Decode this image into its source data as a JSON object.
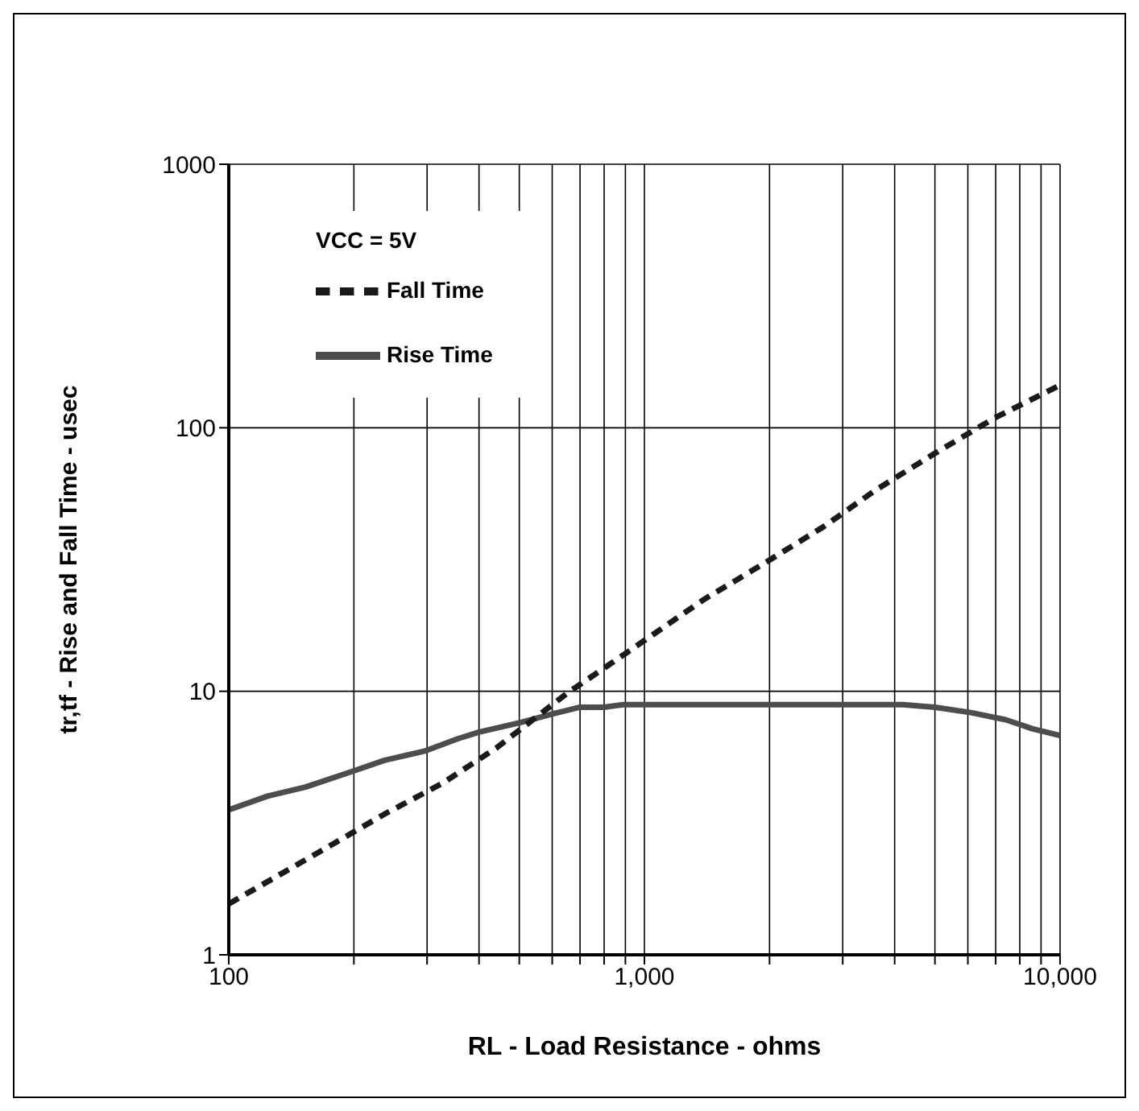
{
  "chart_data": {
    "type": "line",
    "xlabel": "RL - Load Resistance - ohms",
    "ylabel": "tr,tf - Rise and Fall Time - usec",
    "annotations": [
      "VCC = 5V"
    ],
    "log": "xy",
    "grid": true,
    "legend": "top left",
    "xlim": [
      100,
      10000
    ],
    "ylim": [
      1,
      1000
    ],
    "xticks": [
      {
        "value": 100,
        "label": "100"
      },
      {
        "value": 200,
        "label": null
      },
      {
        "value": 300,
        "label": null
      },
      {
        "value": 400,
        "label": null
      },
      {
        "value": 500,
        "label": null
      },
      {
        "value": 600,
        "label": null
      },
      {
        "value": 700,
        "label": null
      },
      {
        "value": 800,
        "label": null
      },
      {
        "value": 900,
        "label": null
      },
      {
        "value": 1000,
        "label": "1,000"
      },
      {
        "value": 2000,
        "label": null
      },
      {
        "value": 3000,
        "label": null
      },
      {
        "value": 4000,
        "label": null
      },
      {
        "value": 5000,
        "label": null
      },
      {
        "value": 6000,
        "label": null
      },
      {
        "value": 7000,
        "label": null
      },
      {
        "value": 8000,
        "label": null
      },
      {
        "value": 9000,
        "label": null
      },
      {
        "value": 10000,
        "label": "10,000"
      }
    ],
    "yticks": [
      1,
      10,
      100,
      1000
    ],
    "series": [
      {
        "name": "Rise Time",
        "color": "#4d4d4d",
        "line_style": "solid",
        "x": [
          100,
          124,
          153,
          200,
          237,
          296,
          355,
          400,
          502,
          600,
          700,
          800,
          890,
          4180,
          5000,
          6100,
          7400,
          8600,
          10000
        ],
        "values": [
          3.55,
          4.0,
          4.33,
          4.99,
          5.47,
          5.93,
          6.6,
          7.0,
          7.6,
          8.2,
          8.7,
          8.7,
          8.9,
          8.9,
          8.7,
          8.3,
          7.8,
          7.2,
          6.8
        ]
      },
      {
        "name": "Fall Time",
        "color": "#1a1a1a",
        "line_style": "dashed",
        "x": [
          100,
          120,
          166,
          237,
          327,
          440,
          650,
          900,
          1390,
          1930,
          2690,
          3600,
          5000,
          6960,
          10000
        ],
        "values": [
          1.56,
          1.84,
          2.47,
          3.42,
          4.48,
          6.09,
          9.8,
          13.9,
          22.3,
          30.4,
          42,
          58,
          80,
          109,
          145
        ]
      }
    ]
  }
}
